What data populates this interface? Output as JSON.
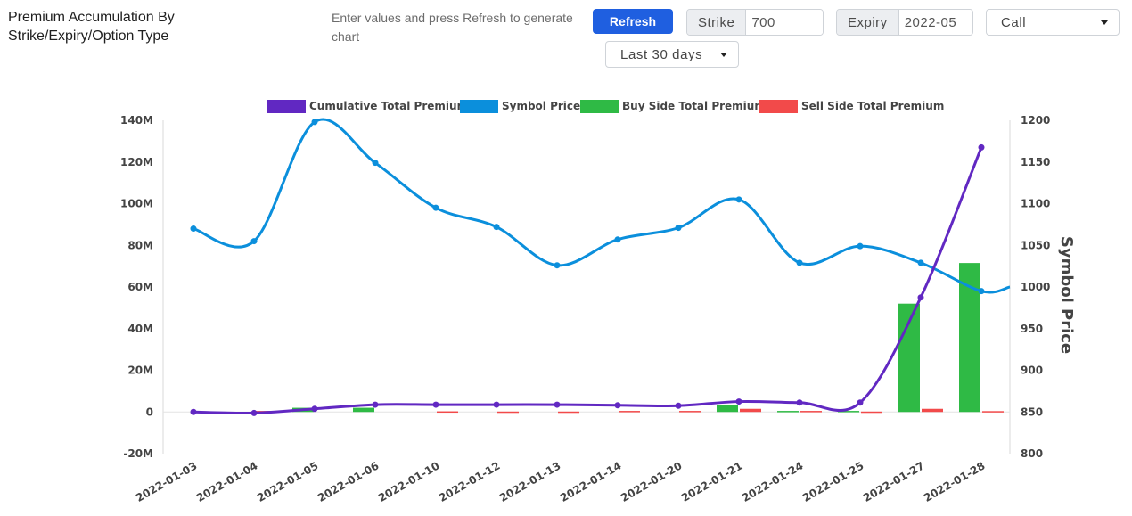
{
  "header": {
    "title": "Premium Accumulation By Strike/Expiry/Option Type",
    "hint": "Enter values and press Refresh to generate chart",
    "refresh_label": "Refresh",
    "strike_label": "Strike",
    "strike_value": "700",
    "expiry_label": "Expiry",
    "expiry_value": "2022-05",
    "option_type_value": "Call",
    "range_value": "Last 30 days"
  },
  "colors": {
    "cumulative": "#6128c2",
    "symbol_price": "#0b8fdc",
    "buy": "#2fba45",
    "sell": "#f24a4a",
    "grid": "#e6e6e6"
  },
  "chart_data": {
    "type": "bar",
    "categories": [
      "2022-01-03",
      "2022-01-04",
      "2022-01-05",
      "2022-01-06",
      "2022-01-10",
      "2022-01-12",
      "2022-01-13",
      "2022-01-14",
      "2022-01-20",
      "2022-01-21",
      "2022-01-24",
      "2022-01-25",
      "2022-01-27",
      "2022-01-28"
    ],
    "series": [
      {
        "name": "Cumulative Total Premium",
        "type": "line",
        "axis": "left",
        "values": [
          0,
          -0.5,
          1.5,
          3.5,
          3.5,
          3.5,
          3.5,
          3.2,
          3,
          5,
          4.5,
          4.5,
          55,
          127
        ]
      },
      {
        "name": "Symbol Price",
        "type": "line",
        "axis": "right",
        "values": [
          1070,
          1055,
          1198,
          1149,
          1095,
          1072,
          1026,
          1057,
          1071,
          1105,
          1029,
          1049,
          1029,
          995
        ]
      },
      {
        "name": "Buy Side Total Premium",
        "type": "bar",
        "axis": "left",
        "values": [
          0,
          0,
          2,
          2,
          0,
          0,
          0,
          0,
          0,
          3.5,
          0.5,
          0.5,
          52,
          71.5
        ]
      },
      {
        "name": "Sell Side Total Premium",
        "type": "bar",
        "axis": "left",
        "values": [
          0,
          0.5,
          0,
          0,
          0.3,
          0.2,
          0.2,
          0.5,
          0.5,
          1.5,
          0.5,
          0.2,
          1.5,
          0.4
        ]
      }
    ],
    "y_left": {
      "min": -20,
      "max": 140,
      "ticks": [
        "-20M",
        "0",
        "20M",
        "40M",
        "60M",
        "80M",
        "100M",
        "120M",
        "140M"
      ]
    },
    "y_right": {
      "min": 800,
      "max": 1200,
      "ticks": [
        "800",
        "850",
        "900",
        "950",
        "1000",
        "1050",
        "1100",
        "1150",
        "1200"
      ],
      "title": "Symbol Price"
    },
    "legend": "top-center",
    "grid": false
  }
}
